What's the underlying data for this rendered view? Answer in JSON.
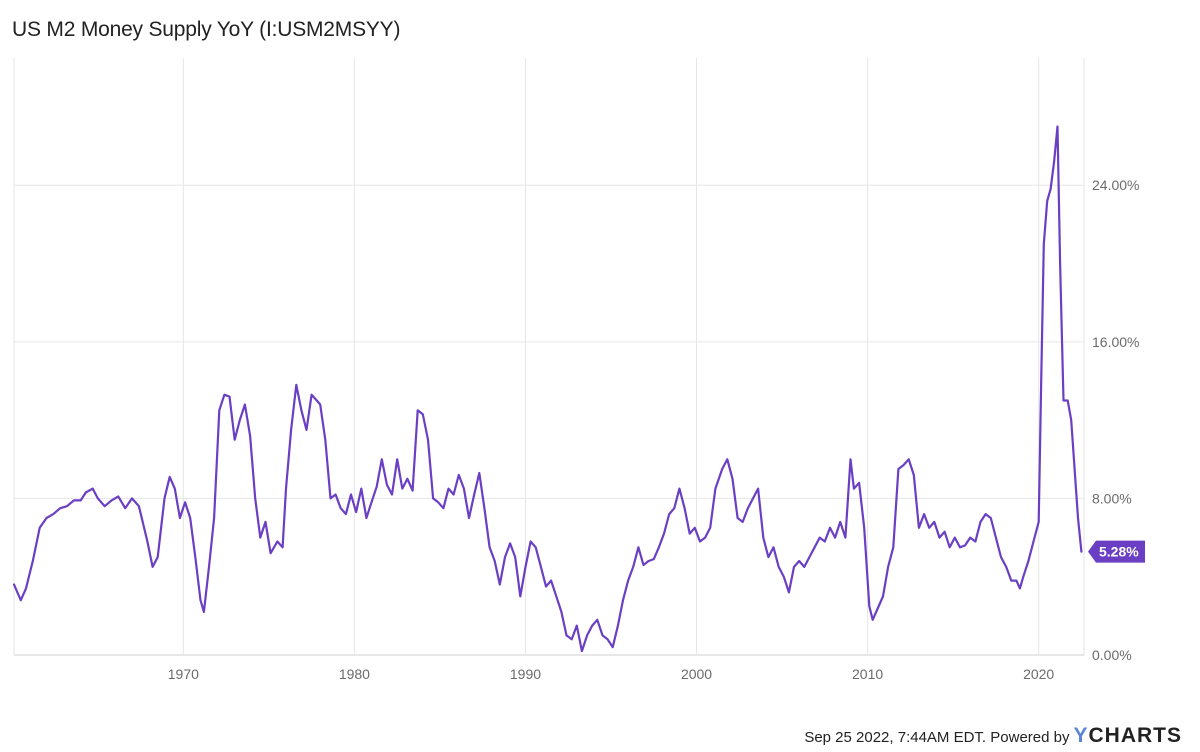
{
  "title": "US M2 Money Supply YoY (I:USM2MSYY)",
  "footer": {
    "timestamp_text": "Sep 25 2022, 7:44AM EDT. Powered by",
    "brand": "YCHARTS",
    "brand_first_letter": "Y",
    "brand_rest": "CHARTS"
  },
  "colors": {
    "line": "#6a3fc4",
    "badge": "#6a3fc4",
    "grid": "#e6e6e6",
    "brand_accent": "#5b86d6"
  },
  "chart_data": {
    "type": "line",
    "title": "US M2 Money Supply YoY (I:USM2MSYY)",
    "x_range": [
      1960.1,
      2022.65
    ],
    "y_range": [
      0,
      30.5
    ],
    "x_ticks": [
      1970,
      1980,
      1990,
      2000,
      2010,
      2020
    ],
    "x_tick_labels": [
      "1970",
      "1980",
      "1990",
      "2000",
      "2010",
      "2020"
    ],
    "y_ticks": [
      0,
      8,
      16,
      24
    ],
    "y_tick_labels": [
      "0.00%",
      "8.00%",
      "16.00%",
      "24.00%"
    ],
    "y_axis_side": "right",
    "grid": true,
    "last_value_label": "5.28%",
    "last_value": 5.28,
    "series": [
      {
        "points": [
          [
            1960.1,
            3.6
          ],
          [
            1960.5,
            2.8
          ],
          [
            1960.8,
            3.4
          ],
          [
            1961.2,
            4.8
          ],
          [
            1961.6,
            6.5
          ],
          [
            1962.0,
            7.0
          ],
          [
            1962.4,
            7.2
          ],
          [
            1962.8,
            7.5
          ],
          [
            1963.2,
            7.6
          ],
          [
            1963.6,
            7.9
          ],
          [
            1964.0,
            7.9
          ],
          [
            1964.3,
            8.3
          ],
          [
            1964.7,
            8.5
          ],
          [
            1965.0,
            8.0
          ],
          [
            1965.4,
            7.6
          ],
          [
            1965.8,
            7.9
          ],
          [
            1966.2,
            8.1
          ],
          [
            1966.6,
            7.5
          ],
          [
            1967.0,
            8.0
          ],
          [
            1967.4,
            7.6
          ],
          [
            1967.9,
            5.8
          ],
          [
            1968.2,
            4.5
          ],
          [
            1968.5,
            5.0
          ],
          [
            1968.9,
            8.0
          ],
          [
            1969.2,
            9.1
          ],
          [
            1969.5,
            8.5
          ],
          [
            1969.8,
            7.0
          ],
          [
            1970.1,
            7.8
          ],
          [
            1970.4,
            7.0
          ],
          [
            1970.7,
            5.0
          ],
          [
            1971.0,
            2.8
          ],
          [
            1971.2,
            2.2
          ],
          [
            1971.5,
            4.5
          ],
          [
            1971.8,
            7.0
          ],
          [
            1972.1,
            12.5
          ],
          [
            1972.4,
            13.3
          ],
          [
            1972.7,
            13.2
          ],
          [
            1973.0,
            11.0
          ],
          [
            1973.3,
            12.0
          ],
          [
            1973.6,
            12.8
          ],
          [
            1973.9,
            11.2
          ],
          [
            1974.2,
            8.0
          ],
          [
            1974.5,
            6.0
          ],
          [
            1974.8,
            6.8
          ],
          [
            1975.1,
            5.2
          ],
          [
            1975.5,
            5.8
          ],
          [
            1975.8,
            5.5
          ],
          [
            1976.0,
            8.5
          ],
          [
            1976.3,
            11.5
          ],
          [
            1976.6,
            13.8
          ],
          [
            1976.9,
            12.5
          ],
          [
            1977.2,
            11.5
          ],
          [
            1977.5,
            13.3
          ],
          [
            1977.8,
            13.0
          ],
          [
            1978.0,
            12.8
          ],
          [
            1978.3,
            11.0
          ],
          [
            1978.6,
            8.0
          ],
          [
            1978.9,
            8.2
          ],
          [
            1979.2,
            7.5
          ],
          [
            1979.5,
            7.2
          ],
          [
            1979.8,
            8.2
          ],
          [
            1980.1,
            7.3
          ],
          [
            1980.4,
            8.5
          ],
          [
            1980.7,
            7.0
          ],
          [
            1981.0,
            7.8
          ],
          [
            1981.3,
            8.6
          ],
          [
            1981.6,
            10.0
          ],
          [
            1981.9,
            8.7
          ],
          [
            1982.2,
            8.2
          ],
          [
            1982.5,
            10.0
          ],
          [
            1982.8,
            8.5
          ],
          [
            1983.1,
            9.0
          ],
          [
            1983.4,
            8.4
          ],
          [
            1983.7,
            12.5
          ],
          [
            1984.0,
            12.3
          ],
          [
            1984.3,
            11.0
          ],
          [
            1984.6,
            8.0
          ],
          [
            1984.9,
            7.8
          ],
          [
            1985.2,
            7.5
          ],
          [
            1985.5,
            8.5
          ],
          [
            1985.8,
            8.2
          ],
          [
            1986.1,
            9.2
          ],
          [
            1986.4,
            8.5
          ],
          [
            1986.7,
            7.0
          ],
          [
            1987.0,
            8.2
          ],
          [
            1987.3,
            9.3
          ],
          [
            1987.6,
            7.5
          ],
          [
            1987.9,
            5.5
          ],
          [
            1988.2,
            4.8
          ],
          [
            1988.5,
            3.6
          ],
          [
            1988.8,
            5.0
          ],
          [
            1989.1,
            5.7
          ],
          [
            1989.4,
            5.0
          ],
          [
            1989.7,
            3.0
          ],
          [
            1990.0,
            4.5
          ],
          [
            1990.3,
            5.8
          ],
          [
            1990.6,
            5.5
          ],
          [
            1990.9,
            4.5
          ],
          [
            1991.2,
            3.5
          ],
          [
            1991.5,
            3.8
          ],
          [
            1991.8,
            3.0
          ],
          [
            1992.1,
            2.2
          ],
          [
            1992.4,
            1.0
          ],
          [
            1992.7,
            0.8
          ],
          [
            1993.0,
            1.5
          ],
          [
            1993.3,
            0.2
          ],
          [
            1993.6,
            1.0
          ],
          [
            1993.9,
            1.5
          ],
          [
            1994.2,
            1.8
          ],
          [
            1994.5,
            1.0
          ],
          [
            1994.8,
            0.8
          ],
          [
            1995.1,
            0.4
          ],
          [
            1995.4,
            1.5
          ],
          [
            1995.7,
            2.8
          ],
          [
            1996.0,
            3.8
          ],
          [
            1996.3,
            4.5
          ],
          [
            1996.6,
            5.5
          ],
          [
            1996.9,
            4.6
          ],
          [
            1997.2,
            4.8
          ],
          [
            1997.5,
            4.9
          ],
          [
            1997.8,
            5.5
          ],
          [
            1998.1,
            6.2
          ],
          [
            1998.4,
            7.2
          ],
          [
            1998.7,
            7.5
          ],
          [
            1999.0,
            8.5
          ],
          [
            1999.3,
            7.5
          ],
          [
            1999.6,
            6.2
          ],
          [
            1999.9,
            6.5
          ],
          [
            2000.2,
            5.8
          ],
          [
            2000.5,
            6.0
          ],
          [
            2000.8,
            6.5
          ],
          [
            2001.1,
            8.5
          ],
          [
            2001.5,
            9.5
          ],
          [
            2001.8,
            10.0
          ],
          [
            2002.1,
            9.0
          ],
          [
            2002.4,
            7.0
          ],
          [
            2002.7,
            6.8
          ],
          [
            2003.0,
            7.5
          ],
          [
            2003.3,
            8.0
          ],
          [
            2003.6,
            8.5
          ],
          [
            2003.9,
            6.0
          ],
          [
            2004.2,
            5.0
          ],
          [
            2004.5,
            5.5
          ],
          [
            2004.8,
            4.5
          ],
          [
            2005.1,
            4.0
          ],
          [
            2005.4,
            3.2
          ],
          [
            2005.7,
            4.5
          ],
          [
            2006.0,
            4.8
          ],
          [
            2006.3,
            4.5
          ],
          [
            2006.6,
            5.0
          ],
          [
            2006.9,
            5.5
          ],
          [
            2007.2,
            6.0
          ],
          [
            2007.5,
            5.8
          ],
          [
            2007.8,
            6.5
          ],
          [
            2008.1,
            6.0
          ],
          [
            2008.4,
            6.8
          ],
          [
            2008.7,
            6.0
          ],
          [
            2009.0,
            10.0
          ],
          [
            2009.2,
            8.5
          ],
          [
            2009.5,
            8.8
          ],
          [
            2009.8,
            6.5
          ],
          [
            2010.1,
            2.5
          ],
          [
            2010.3,
            1.8
          ],
          [
            2010.6,
            2.4
          ],
          [
            2010.9,
            3.0
          ],
          [
            2011.2,
            4.5
          ],
          [
            2011.5,
            5.5
          ],
          [
            2011.8,
            9.5
          ],
          [
            2012.1,
            9.7
          ],
          [
            2012.4,
            10.0
          ],
          [
            2012.7,
            9.2
          ],
          [
            2013.0,
            6.5
          ],
          [
            2013.3,
            7.2
          ],
          [
            2013.6,
            6.5
          ],
          [
            2013.9,
            6.8
          ],
          [
            2014.2,
            6.0
          ],
          [
            2014.5,
            6.3
          ],
          [
            2014.8,
            5.5
          ],
          [
            2015.1,
            6.0
          ],
          [
            2015.4,
            5.5
          ],
          [
            2015.7,
            5.6
          ],
          [
            2016.0,
            6.0
          ],
          [
            2016.3,
            5.8
          ],
          [
            2016.6,
            6.8
          ],
          [
            2016.9,
            7.2
          ],
          [
            2017.2,
            7.0
          ],
          [
            2017.5,
            6.0
          ],
          [
            2017.8,
            5.0
          ],
          [
            2018.1,
            4.5
          ],
          [
            2018.4,
            3.8
          ],
          [
            2018.7,
            3.8
          ],
          [
            2018.9,
            3.4
          ],
          [
            2019.1,
            4.0
          ],
          [
            2019.4,
            4.8
          ],
          [
            2019.7,
            5.8
          ],
          [
            2020.0,
            6.8
          ],
          [
            2020.15,
            14.0
          ],
          [
            2020.3,
            21.0
          ],
          [
            2020.5,
            23.2
          ],
          [
            2020.7,
            23.8
          ],
          [
            2020.9,
            25.2
          ],
          [
            2021.1,
            27.0
          ],
          [
            2021.25,
            20.0
          ],
          [
            2021.45,
            13.0
          ],
          [
            2021.7,
            13.0
          ],
          [
            2021.9,
            12.0
          ],
          [
            2022.1,
            9.5
          ],
          [
            2022.3,
            7.0
          ],
          [
            2022.5,
            5.28
          ]
        ]
      }
    ]
  }
}
